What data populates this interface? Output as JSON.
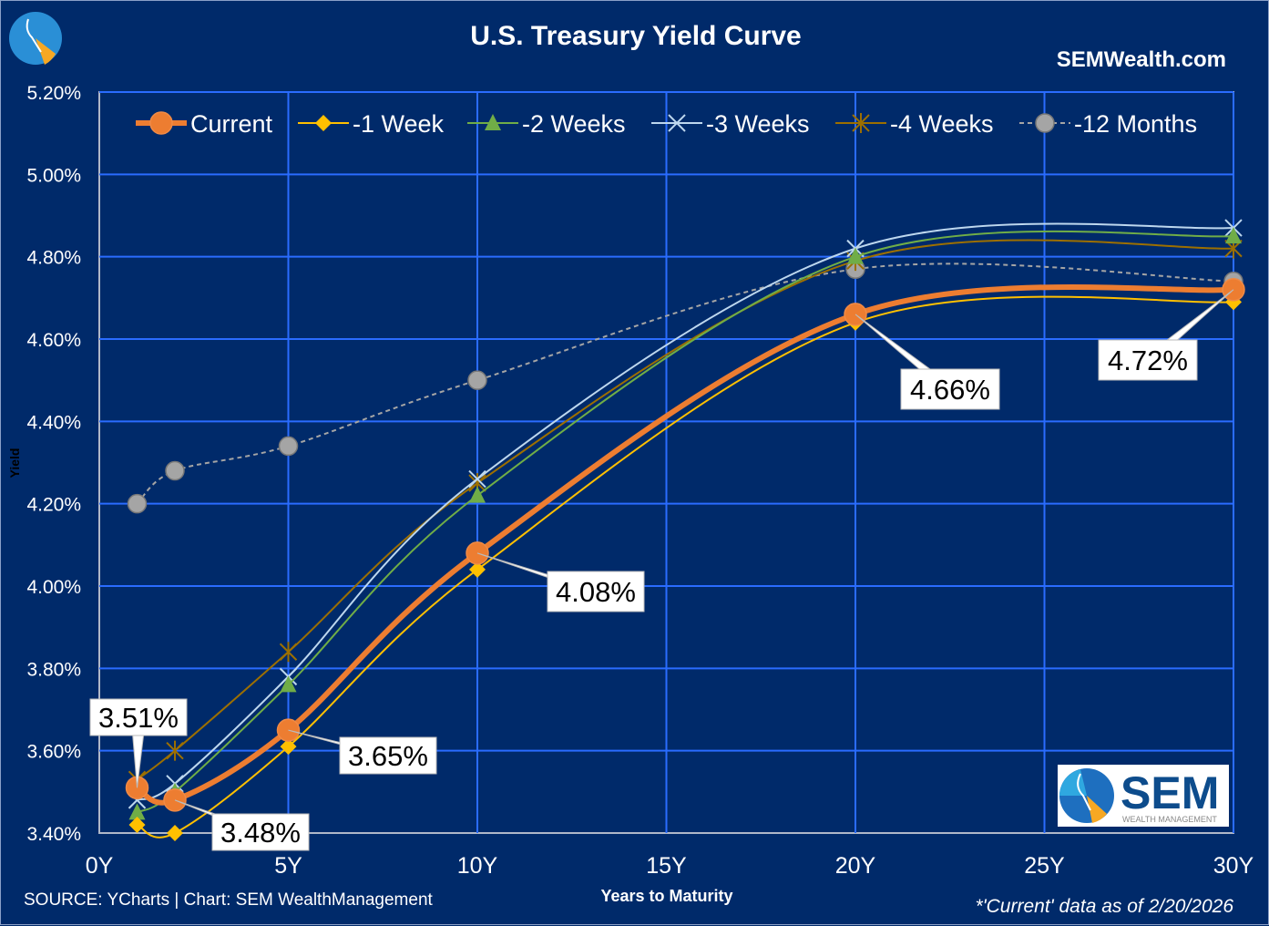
{
  "chart_data": {
    "type": "line",
    "title": "U.S. Treasury Yield Curve",
    "subtitle": "SEMWealth.com",
    "xlabel": "Years to Maturity",
    "ylabel": "Yield",
    "xlim": [
      0,
      30
    ],
    "ylim": [
      3.4,
      5.2
    ],
    "x_ticks": [
      "0Y",
      "5Y",
      "10Y",
      "15Y",
      "20Y",
      "25Y",
      "30Y"
    ],
    "y_ticks": [
      "3.40%",
      "3.60%",
      "3.80%",
      "4.00%",
      "4.20%",
      "4.40%",
      "4.60%",
      "4.80%",
      "5.00%",
      "5.20%"
    ],
    "grid": true,
    "legend_position": "top",
    "x": [
      1,
      2,
      5,
      10,
      20,
      30
    ],
    "series": [
      {
        "name": "Current",
        "color": "#ed7d31",
        "marker": "circle",
        "values": [
          3.51,
          3.48,
          3.65,
          4.08,
          4.66,
          4.72
        ]
      },
      {
        "name": "-1 Week",
        "color": "#ffc000",
        "marker": "diamond",
        "values": [
          3.42,
          3.4,
          3.61,
          4.04,
          4.64,
          4.69
        ]
      },
      {
        "name": "-2 Weeks",
        "color": "#70ad47",
        "marker": "triangle",
        "values": [
          3.45,
          3.5,
          3.76,
          4.22,
          4.8,
          4.85
        ]
      },
      {
        "name": "-3 Weeks",
        "color": "#bdd7ee",
        "marker": "x",
        "values": [
          3.48,
          3.52,
          3.78,
          4.26,
          4.82,
          4.87
        ]
      },
      {
        "name": "-4 Weeks",
        "color": "#9c6f00",
        "marker": "star",
        "values": [
          3.53,
          3.6,
          3.84,
          4.25,
          4.79,
          4.82
        ]
      },
      {
        "name": "-12 Months",
        "color": "#a5a5a5",
        "marker": "circle",
        "dashed": true,
        "values": [
          4.2,
          4.28,
          4.34,
          4.5,
          4.77,
          4.74
        ]
      }
    ],
    "data_labels": [
      "3.51%",
      "3.48%",
      "3.65%",
      "4.08%",
      "4.66%",
      "4.72%"
    ],
    "source": "SOURCE: YCharts | Chart: SEM WealthManagement",
    "footnote": "*'Current' data as of 2/20/2026"
  },
  "logo": {
    "text": "SEM",
    "subtext": "WEALTH MANAGEMENT"
  }
}
